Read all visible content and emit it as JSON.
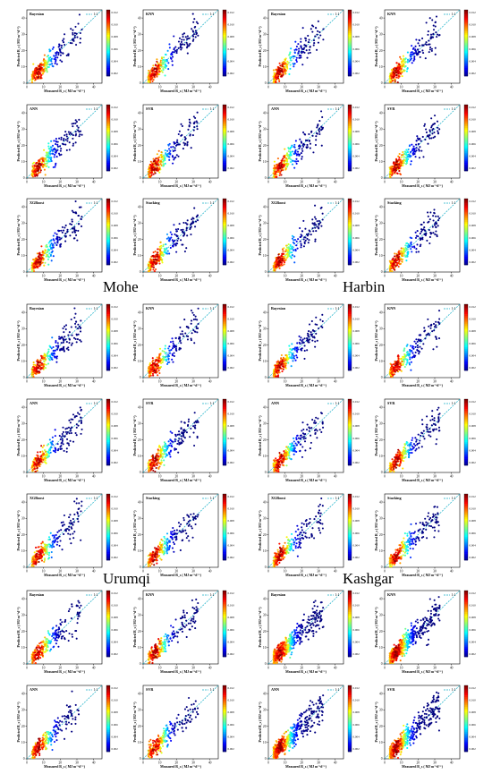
{
  "labels": {
    "xlabel": "Measured R_s ( MJ m⁻²d⁻¹)",
    "ylabel": "Predicted R_s ( MJ m⁻²d⁻¹)",
    "legend": "1:1"
  },
  "stations": [
    {
      "name": "Mohe"
    },
    {
      "name": "Harbin"
    },
    {
      "name": "Urumqi"
    },
    {
      "name": "Kashgar"
    }
  ],
  "models_full": [
    "Bayesian",
    "KNN",
    "ANN",
    "SVR",
    "XGBoost",
    "Stacking"
  ],
  "models_short": [
    "Bayesian",
    "KNN",
    "ANN",
    "SVR"
  ],
  "colors": {
    "line": "#17b0c8",
    "background": "#ffffff"
  },
  "chart_data": {
    "type": "scatter",
    "xlim": [
      0,
      45
    ],
    "ylim": [
      0,
      45
    ],
    "xticks": [
      0,
      10,
      20,
      30,
      40
    ],
    "yticks": [
      0,
      10,
      20,
      30,
      40
    ],
    "colormap": "jet",
    "colorbar_ticks": [
      "0.012",
      "0.010",
      "0.008",
      "0.006",
      "0.004",
      "0.002"
    ]
  }
}
